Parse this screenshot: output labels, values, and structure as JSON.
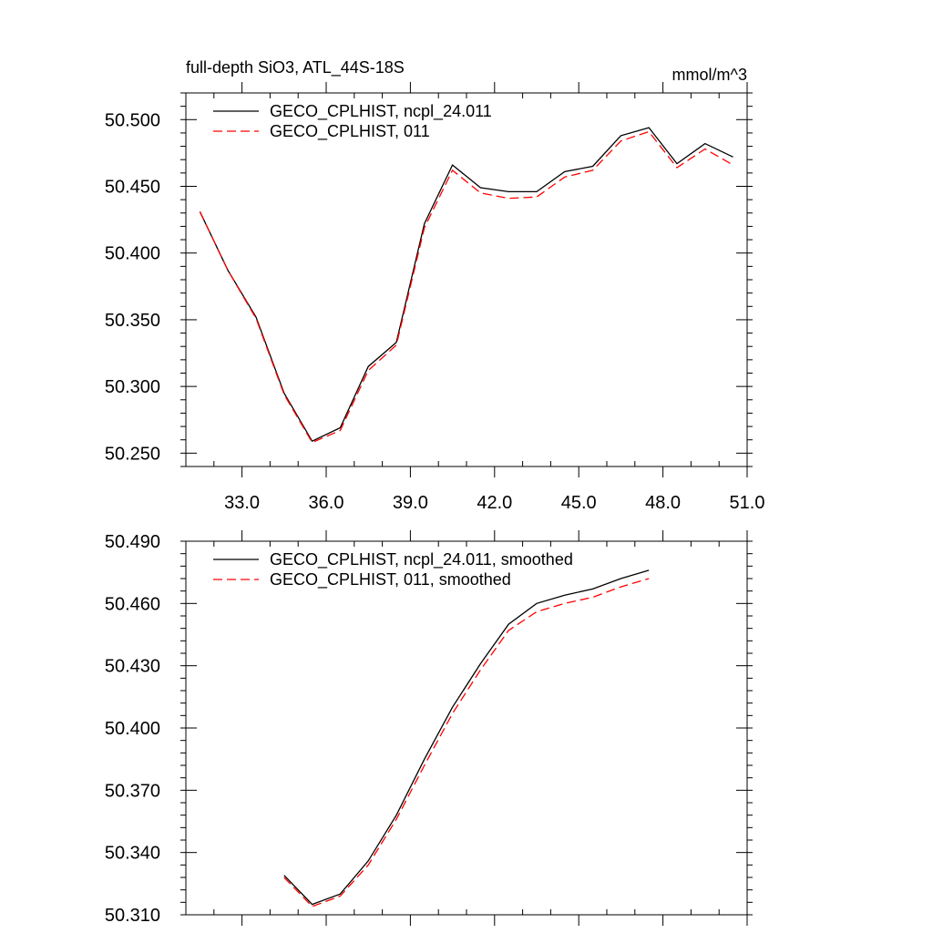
{
  "header": {
    "title": "full-depth SiO3, ATL_44S-18S",
    "units": "mmol/m^3"
  },
  "colors": {
    "series_a": "#000000",
    "series_b": "#ff0000"
  },
  "chart_data": [
    {
      "type": "line",
      "title": "full-depth SiO3, ATL_44S-18S",
      "units": "mmol/m^3",
      "xlim": [
        31.0,
        51.0
      ],
      "ylim": [
        50.24,
        50.52
      ],
      "x_ticks": [
        "33.0",
        "36.0",
        "39.0",
        "42.0",
        "45.0",
        "48.0",
        "51.0"
      ],
      "y_ticks": [
        "50.250",
        "50.300",
        "50.350",
        "50.400",
        "50.450",
        "50.500"
      ],
      "legend_position": "top-left",
      "series": [
        {
          "name": "GECO_CPLHIST, ncpl_24.011",
          "color": "#000000",
          "dash": "solid",
          "x": [
            31.5,
            32.5,
            33.5,
            34.5,
            35.5,
            36.5,
            37.5,
            38.5,
            39.5,
            40.5,
            41.5,
            42.5,
            43.5,
            44.5,
            45.5,
            46.5,
            47.5,
            48.5,
            49.5,
            50.5
          ],
          "y": [
            50.431,
            50.387,
            50.352,
            50.295,
            50.259,
            50.269,
            50.315,
            50.333,
            50.422,
            50.466,
            50.449,
            50.446,
            50.446,
            50.461,
            50.465,
            50.488,
            50.494,
            50.467,
            50.482,
            50.472
          ]
        },
        {
          "name": "GECO_CPLHIST, 011",
          "color": "#ff0000",
          "dash": "dashed",
          "x": [
            31.5,
            32.5,
            33.5,
            34.5,
            35.5,
            36.5,
            37.5,
            38.5,
            39.5,
            40.5,
            41.5,
            42.5,
            43.5,
            44.5,
            45.5,
            46.5,
            47.5,
            48.5,
            49.5,
            50.5
          ],
          "y": [
            50.431,
            50.387,
            50.351,
            50.294,
            50.258,
            50.267,
            50.312,
            50.331,
            50.419,
            50.462,
            50.445,
            50.441,
            50.442,
            50.457,
            50.462,
            50.484,
            50.491,
            50.464,
            50.478,
            50.466
          ]
        }
      ]
    },
    {
      "type": "line",
      "xlim": [
        31.0,
        51.0
      ],
      "ylim": [
        50.31,
        50.49
      ],
      "x_ticks": [],
      "y_ticks": [
        "50.310",
        "50.340",
        "50.370",
        "50.400",
        "50.430",
        "50.460",
        "50.490"
      ],
      "legend_position": "top-left",
      "series": [
        {
          "name": "GECO_CPLHIST, ncpl_24.011, smoothed",
          "color": "#000000",
          "dash": "solid",
          "x": [
            34.5,
            35.5,
            36.5,
            37.5,
            38.5,
            39.5,
            40.5,
            41.5,
            42.5,
            43.5,
            44.5,
            45.5,
            46.5,
            47.5
          ],
          "y": [
            50.329,
            50.315,
            50.32,
            50.336,
            50.358,
            50.385,
            50.41,
            50.431,
            50.45,
            50.46,
            50.464,
            50.467,
            50.472,
            50.476
          ]
        },
        {
          "name": "GECO_CPLHIST, 011, smoothed",
          "color": "#ff0000",
          "dash": "dashed",
          "x": [
            34.5,
            35.5,
            36.5,
            37.5,
            38.5,
            39.5,
            40.5,
            41.5,
            42.5,
            43.5,
            44.5,
            45.5,
            46.5,
            47.5
          ],
          "y": [
            50.328,
            50.314,
            50.319,
            50.334,
            50.356,
            50.382,
            50.407,
            50.428,
            50.447,
            50.456,
            50.46,
            50.463,
            50.468,
            50.472
          ]
        }
      ]
    }
  ]
}
